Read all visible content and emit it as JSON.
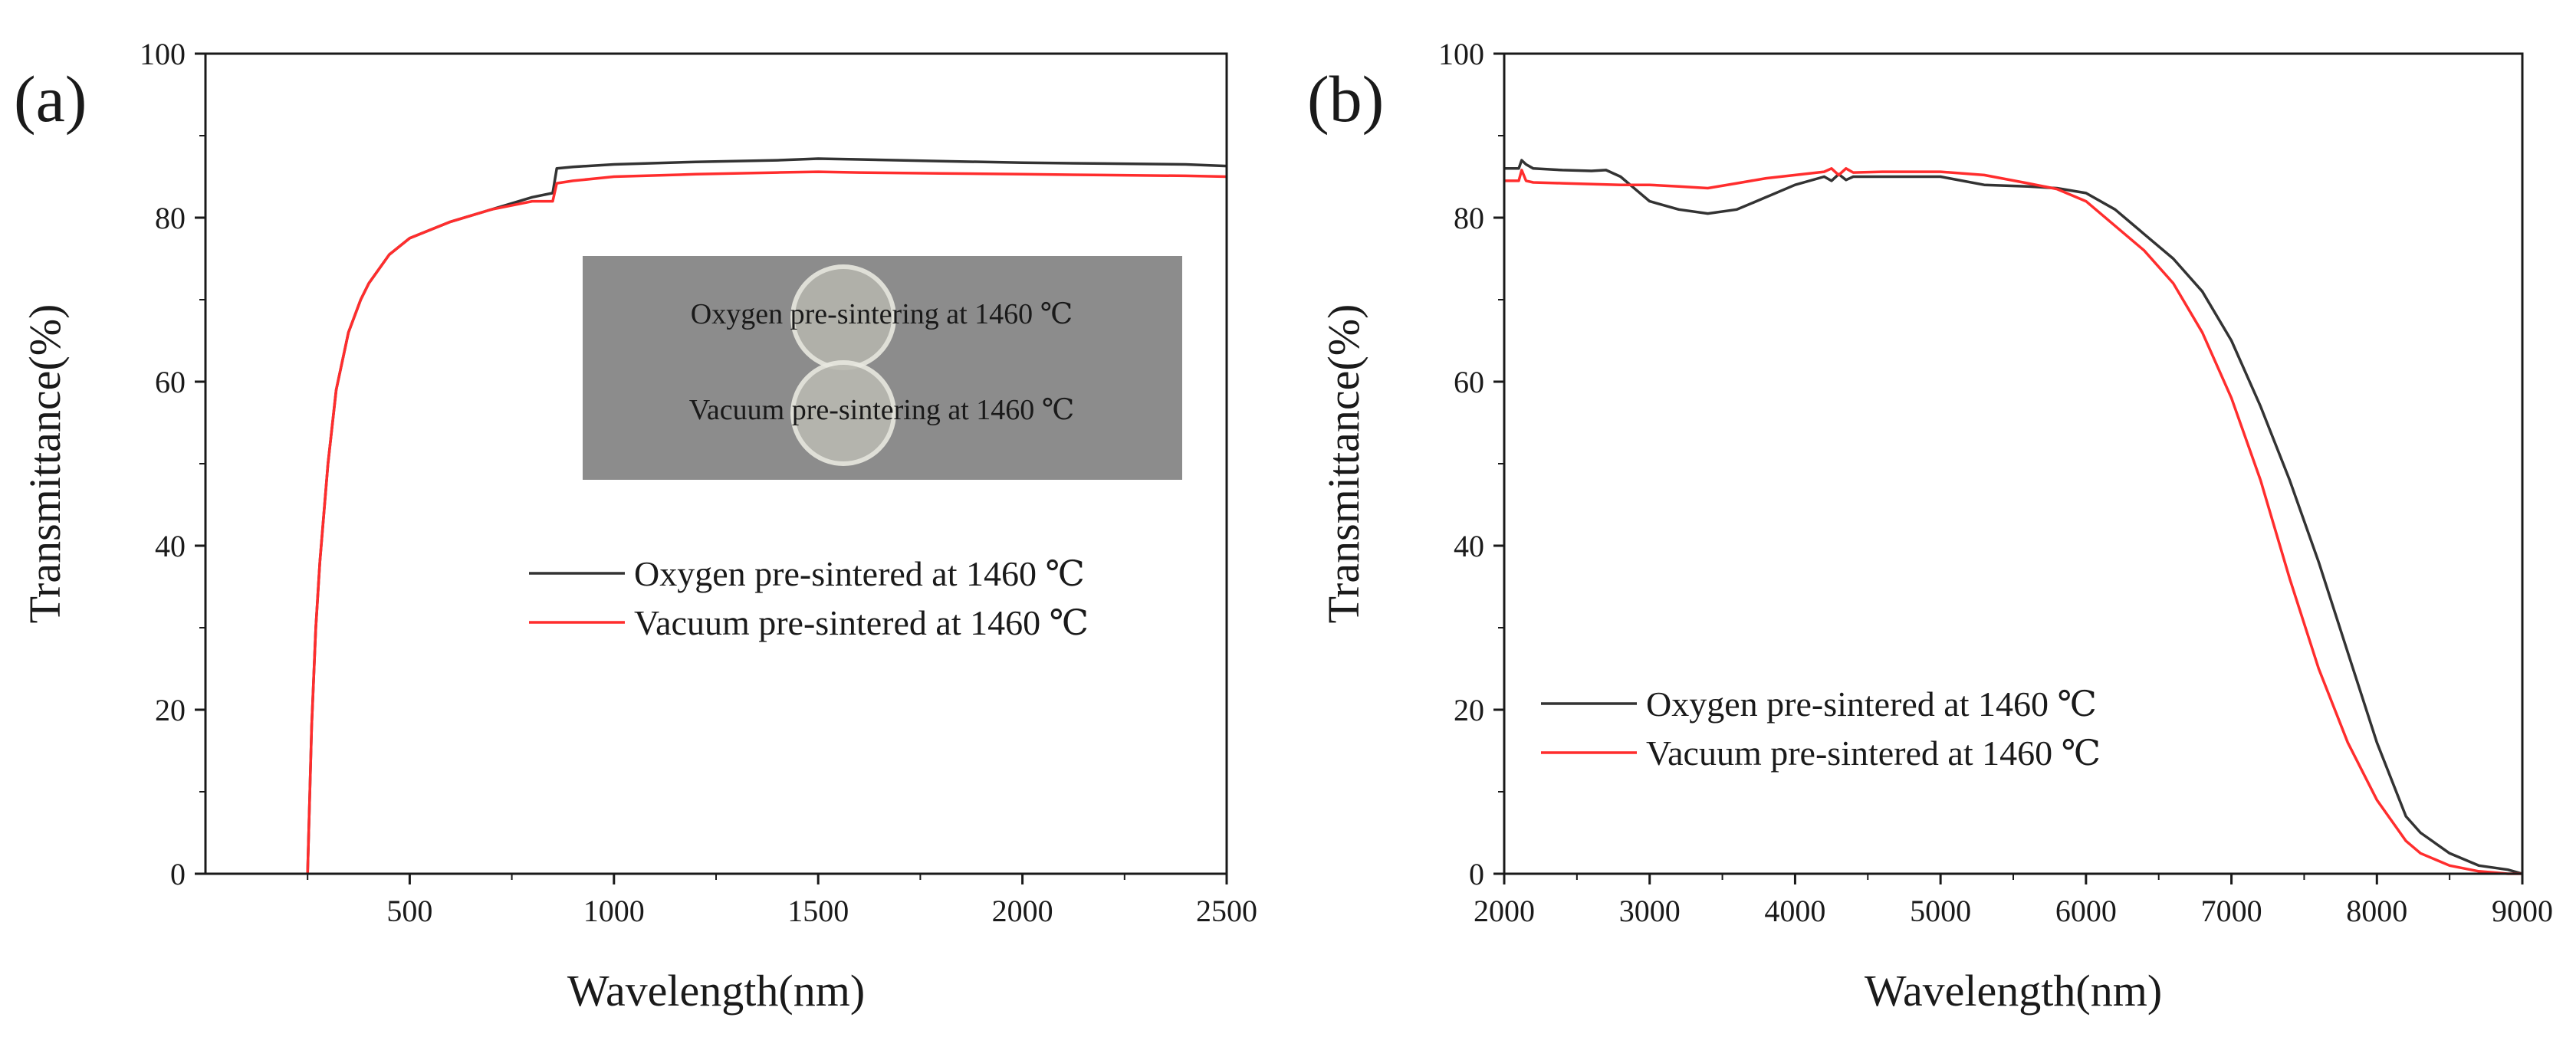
{
  "chart_data": [
    {
      "type": "line",
      "panel_label": "(a)",
      "xlabel": "Wavelength(nm)",
      "ylabel": "Transmittance(%)",
      "xlim": [
        0,
        2500
      ],
      "ylim": [
        0,
        100
      ],
      "xticks": [
        500,
        1000,
        1500,
        2000,
        2500
      ],
      "yticks": [
        0,
        20,
        40,
        60,
        80,
        100
      ],
      "grid": false,
      "legend_position": "center-right",
      "inset_photo": {
        "labels": [
          "Oxygen pre-sintering at 1460 ℃",
          "Vacuum pre-sintering at 1460 ℃"
        ],
        "background_color": "#8c8c8c"
      },
      "series": [
        {
          "name": "Oxygen pre-sintered at 1460 ℃",
          "color": "#333333",
          "x": [
            250,
            260,
            270,
            280,
            300,
            320,
            350,
            380,
            400,
            450,
            500,
            550,
            600,
            700,
            800,
            850,
            860,
            900,
            1000,
            1200,
            1400,
            1500,
            1600,
            1800,
            2000,
            2200,
            2400,
            2500
          ],
          "y": [
            0,
            18,
            30,
            38,
            50,
            59,
            66,
            70,
            72,
            75.5,
            77.5,
            78.5,
            79.5,
            81,
            82.5,
            83,
            86,
            86.2,
            86.5,
            86.8,
            87,
            87.2,
            87.1,
            86.9,
            86.7,
            86.6,
            86.5,
            86.3
          ]
        },
        {
          "name": "Vacuum pre-sintered at 1460 ℃",
          "color": "#ff2d2d",
          "x": [
            250,
            260,
            270,
            280,
            300,
            320,
            350,
            380,
            400,
            450,
            500,
            550,
            600,
            700,
            800,
            850,
            860,
            900,
            1000,
            1200,
            1400,
            1500,
            1600,
            1800,
            2000,
            2200,
            2400,
            2500
          ],
          "y": [
            0,
            18,
            30,
            38,
            50,
            59,
            66,
            70,
            72,
            75.5,
            77.5,
            78.5,
            79.5,
            81,
            82,
            82,
            84.2,
            84.5,
            85,
            85.3,
            85.5,
            85.6,
            85.5,
            85.4,
            85.3,
            85.2,
            85.1,
            85
          ]
        }
      ]
    },
    {
      "type": "line",
      "panel_label": "(b)",
      "xlabel": "Wavelength(nm)",
      "ylabel": "Transmittance(%)",
      "xlim": [
        2000,
        9000
      ],
      "ylim": [
        0,
        100
      ],
      "xticks": [
        2000,
        3000,
        4000,
        5000,
        6000,
        7000,
        8000,
        9000
      ],
      "yticks": [
        0,
        20,
        40,
        60,
        80,
        100
      ],
      "grid": false,
      "legend_position": "lower-left",
      "series": [
        {
          "name": "Oxygen pre-sintered at 1460 ℃",
          "color": "#333333",
          "x": [
            2000,
            2100,
            2120,
            2150,
            2200,
            2400,
            2600,
            2700,
            2800,
            2900,
            3000,
            3200,
            3400,
            3600,
            3800,
            4000,
            4200,
            4250,
            4300,
            4350,
            4400,
            4600,
            5000,
            5300,
            5600,
            5800,
            6000,
            6200,
            6400,
            6600,
            6800,
            7000,
            7200,
            7400,
            7600,
            7800,
            8000,
            8200,
            8300,
            8500,
            8700,
            8900,
            9000
          ],
          "y": [
            86,
            86,
            87,
            86.5,
            86,
            85.8,
            85.7,
            85.8,
            85,
            83.5,
            82,
            81,
            80.5,
            81,
            82.5,
            84,
            85,
            84.5,
            85.3,
            84.6,
            85,
            85,
            85,
            84,
            83.8,
            83.6,
            83,
            81,
            78,
            75,
            71,
            65,
            57,
            48,
            38,
            27,
            16,
            7,
            5,
            2.5,
            1,
            0.5,
            0
          ]
        },
        {
          "name": "Vacuum pre-sintered at 1460 ℃",
          "color": "#ff2d2d",
          "x": [
            2000,
            2100,
            2120,
            2150,
            2200,
            2400,
            2800,
            3000,
            3200,
            3400,
            3600,
            3800,
            4000,
            4200,
            4250,
            4300,
            4350,
            4400,
            4600,
            5000,
            5300,
            5600,
            5800,
            6000,
            6200,
            6400,
            6600,
            6800,
            7000,
            7200,
            7400,
            7600,
            7800,
            8000,
            8200,
            8300,
            8500,
            8700,
            8900,
            9000
          ],
          "y": [
            84.5,
            84.5,
            85.8,
            84.5,
            84.3,
            84.2,
            84,
            84,
            83.8,
            83.6,
            84.2,
            84.8,
            85.2,
            85.6,
            86,
            85.2,
            86,
            85.5,
            85.6,
            85.6,
            85.2,
            84.2,
            83.5,
            82,
            79,
            76,
            72,
            66,
            58,
            48,
            36,
            25,
            16,
            9,
            4,
            2.5,
            1,
            0.3,
            0,
            0
          ]
        }
      ]
    }
  ]
}
